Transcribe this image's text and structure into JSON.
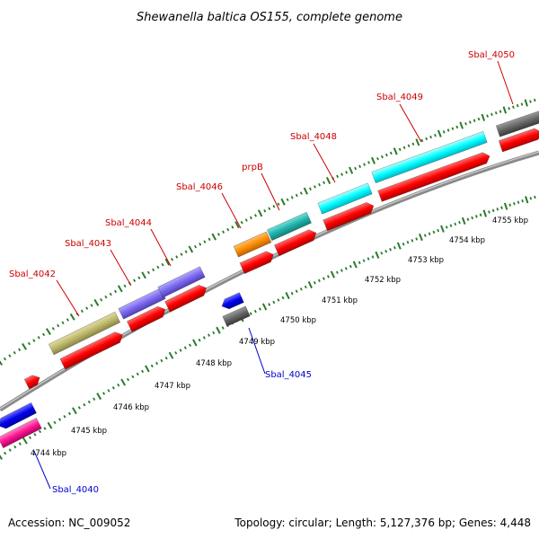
{
  "title": "Shewanella baltica OS155, complete genome",
  "footer": {
    "accession": "Accession: NC_009052",
    "summary": "Topology: circular; Length: 5,127,376 bp; Genes: 4,448"
  },
  "colors": {
    "forward_label": "#cc0000",
    "reverse_label": "#0000cc",
    "backbone": "#999999",
    "tick": "#2a7a2a",
    "cds_red": "#ff0000",
    "khaki": "#bdb76b",
    "slate": "#7b68ee",
    "orange": "#ff8c00",
    "teal": "#20b2aa",
    "cyan": "#00ffff",
    "gray": "#666666",
    "blue": "#0000ee",
    "magenta": "#ff1493"
  },
  "kbp_labels": [
    "4744 kbp",
    "4745 kbp",
    "4746 kbp",
    "4747 kbp",
    "4748 kbp",
    "4749 kbp",
    "4750 kbp",
    "4751 kbp",
    "4752 kbp",
    "4753 kbp",
    "4754 kbp",
    "4755 kbp"
  ],
  "forward_genes": [
    "Sbal_4042",
    "Sbal_4043",
    "Sbal_4044",
    "Sbal_4046",
    "prpB",
    "Sbal_4048",
    "Sbal_4049",
    "Sbal_4050"
  ],
  "reverse_genes": [
    "Sbal_4040",
    "Sbal_4045"
  ]
}
